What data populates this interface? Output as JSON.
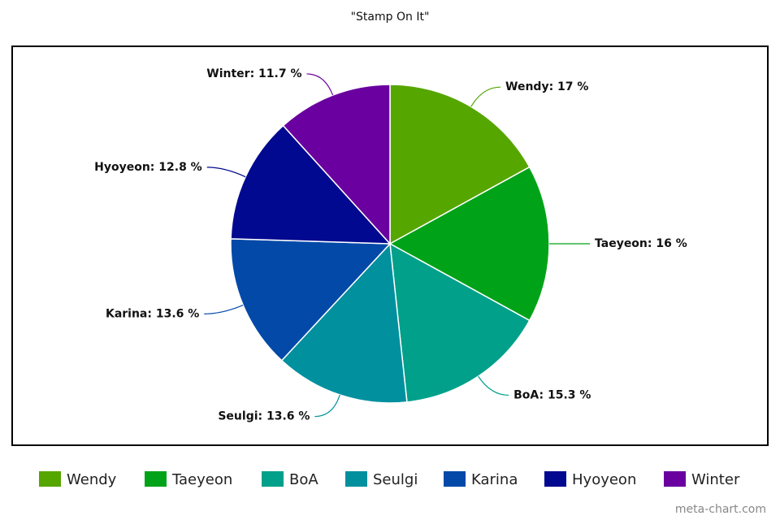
{
  "chart_data": {
    "type": "pie",
    "title": "\"Stamp On It\"",
    "categories": [
      "Wendy",
      "Taeyeon",
      "BoA",
      "Seulgi",
      "Karina",
      "Hyoyeon",
      "Winter"
    ],
    "values": [
      17,
      16,
      15.3,
      13.6,
      13.6,
      12.8,
      11.7
    ],
    "value_labels": [
      "Wendy: 17 %",
      "Taeyeon: 16 %",
      "BoA: 15.3 %",
      "Seulgi: 13.6 %",
      "Karina: 13.6 %",
      "Hyoyeon: 12.8 %",
      "Winter: 11.7 %"
    ],
    "colors": [
      "#56a600",
      "#00a318",
      "#00a08a",
      "#00909e",
      "#0349a8",
      "#00098f",
      "#6a00a0"
    ],
    "legend": "bottom",
    "watermark": "meta-chart.com"
  }
}
